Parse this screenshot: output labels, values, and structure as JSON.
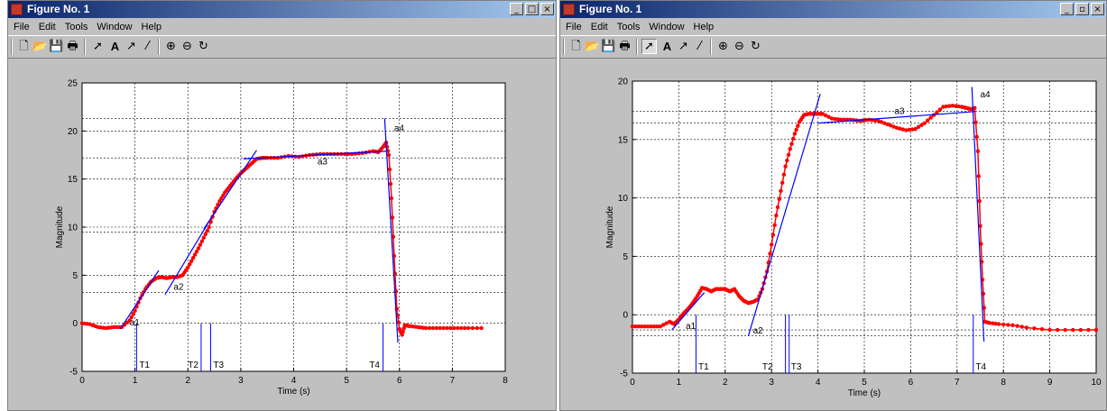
{
  "windows": [
    {
      "title": "Figure No. 1",
      "buttons": [
        "_",
        "□",
        "×"
      ],
      "menu": [
        "File",
        "Edit",
        "Tools",
        "Window",
        "Help"
      ]
    },
    {
      "title": "Figure No. 1",
      "buttons": [
        "_",
        "▫",
        "×"
      ],
      "menu": [
        "File",
        "Edit",
        "Tools",
        "Window",
        "Help"
      ]
    }
  ],
  "toolbar_icons": [
    "new-figure-icon",
    "open-icon",
    "save-icon",
    "print-icon",
    "select-arrow-icon",
    "text-icon",
    "arrow-icon",
    "line-icon",
    "zoom-in-icon",
    "zoom-out-icon",
    "rotate-icon"
  ],
  "chart_data": [
    {
      "type": "line",
      "xlabel": "Time (s)",
      "ylabel": "Magnitude",
      "xlim": [
        0,
        8
      ],
      "ylim": [
        -5,
        25
      ],
      "xticks": [
        0,
        1,
        2,
        3,
        4,
        5,
        6,
        7,
        8
      ],
      "yticks": [
        -5,
        0,
        5,
        10,
        15,
        20,
        25
      ],
      "grid": true,
      "extra_hlines": [
        3.2,
        9.5,
        17.2,
        21.3
      ],
      "series": [
        {
          "style": "red-dots",
          "x": [
            0,
            0.15,
            0.3,
            0.45,
            0.6,
            0.75,
            0.9,
            1.0,
            1.1,
            1.2,
            1.3,
            1.4,
            1.5,
            1.6,
            1.7,
            1.8,
            1.9,
            2.0,
            2.1,
            2.2,
            2.3,
            2.4,
            2.5,
            2.6,
            2.7,
            2.8,
            2.9,
            3.0,
            3.1,
            3.2,
            3.3,
            3.4,
            3.5,
            3.7,
            3.9,
            4.1,
            4.3,
            4.5,
            4.7,
            4.9,
            5.1,
            5.3,
            5.5,
            5.6,
            5.7,
            5.75,
            5.8,
            5.85,
            5.9,
            5.95,
            6.0,
            6.05,
            6.1,
            6.2,
            6.35,
            6.5,
            6.7,
            6.9,
            7.1,
            7.3,
            7.55
          ],
          "y": [
            0.0,
            -0.1,
            -0.4,
            -0.5,
            -0.4,
            -0.4,
            0.3,
            1.3,
            2.6,
            3.6,
            4.3,
            4.7,
            4.8,
            4.7,
            4.8,
            4.8,
            5.0,
            5.8,
            6.8,
            7.8,
            8.9,
            10.0,
            11.6,
            12.7,
            13.6,
            14.3,
            15.0,
            15.6,
            16.1,
            16.6,
            17.1,
            17.2,
            17.2,
            17.2,
            17.4,
            17.3,
            17.5,
            17.6,
            17.6,
            17.6,
            17.6,
            17.7,
            17.9,
            17.8,
            18.4,
            18.8,
            17.5,
            13.0,
            7.0,
            1.5,
            -0.6,
            -1.2,
            -0.2,
            -0.3,
            -0.4,
            -0.5,
            -0.5,
            -0.5,
            -0.5,
            -0.5,
            -0.5
          ]
        }
      ],
      "fit_lines": [
        {
          "x": [
            0.72,
            1.45
          ],
          "y": [
            -0.6,
            5.5
          ]
        },
        {
          "x": [
            1.57,
            2.5
          ],
          "y": [
            3.0,
            11.5
          ]
        },
        {
          "x": [
            2.3,
            3.3
          ],
          "y": [
            9.8,
            18.0
          ]
        },
        {
          "x": [
            3.05,
            5.75
          ],
          "y": [
            17.1,
            17.9
          ]
        },
        {
          "x": [
            5.72,
            5.97
          ],
          "y": [
            21.3,
            -2.0
          ]
        }
      ],
      "vlines": [
        1.03,
        2.25,
        2.43,
        5.69
      ],
      "point_labels": [
        {
          "text": "a1",
          "x": 0.9,
          "y": -0.2
        },
        {
          "text": "a2",
          "x": 1.73,
          "y": 3.5
        },
        {
          "text": "a3",
          "x": 4.45,
          "y": 16.5
        },
        {
          "text": "a4",
          "x": 5.9,
          "y": 20.0
        }
      ],
      "time_labels": [
        {
          "text": "T1",
          "x": 1.08
        },
        {
          "text": "T2",
          "x": 2.0
        },
        {
          "text": "T3",
          "x": 2.48
        },
        {
          "text": "T4",
          "x": 5.43
        }
      ]
    },
    {
      "type": "line",
      "xlabel": "Time (s)",
      "ylabel": "Magnitude",
      "xlim": [
        0,
        10
      ],
      "ylim": [
        -5,
        20
      ],
      "xticks": [
        0,
        1,
        2,
        3,
        4,
        5,
        6,
        7,
        8,
        9,
        10
      ],
      "yticks": [
        -5,
        0,
        5,
        10,
        15,
        20
      ],
      "grid": true,
      "extra_hlines": [
        -1.3,
        -1.8,
        16.4,
        17.4
      ],
      "series": [
        {
          "style": "red-dots",
          "x": [
            0,
            0.2,
            0.4,
            0.6,
            0.8,
            0.9,
            1.0,
            1.1,
            1.2,
            1.3,
            1.4,
            1.5,
            1.6,
            1.7,
            1.8,
            1.9,
            2.0,
            2.1,
            2.2,
            2.3,
            2.4,
            2.5,
            2.6,
            2.7,
            2.8,
            2.9,
            3.0,
            3.1,
            3.2,
            3.3,
            3.4,
            3.5,
            3.6,
            3.7,
            3.8,
            3.9,
            4.0,
            4.1,
            4.3,
            4.5,
            4.7,
            4.9,
            5.1,
            5.3,
            5.5,
            5.7,
            5.9,
            6.1,
            6.3,
            6.5,
            6.7,
            6.9,
            7.1,
            7.2,
            7.3,
            7.38,
            7.45,
            7.5,
            7.55,
            7.6,
            7.7,
            7.9,
            8.2,
            8.5,
            9.0,
            9.5,
            10.0
          ],
          "y": [
            -1.0,
            -1.0,
            -1.0,
            -1.0,
            -0.6,
            -0.8,
            -0.4,
            0.1,
            0.5,
            1.0,
            1.6,
            2.3,
            2.2,
            2.0,
            2.2,
            2.2,
            2.2,
            2.0,
            2.2,
            1.6,
            1.2,
            1.0,
            1.1,
            1.3,
            2.2,
            3.7,
            6.0,
            8.5,
            10.6,
            12.7,
            14.2,
            15.5,
            16.5,
            17.1,
            17.2,
            17.2,
            17.2,
            17.2,
            16.8,
            16.7,
            16.7,
            16.6,
            16.7,
            16.6,
            16.3,
            16.0,
            15.8,
            15.9,
            16.4,
            17.1,
            17.8,
            17.9,
            17.8,
            17.7,
            17.6,
            17.7,
            14.0,
            7.6,
            3.0,
            -0.6,
            -0.7,
            -0.8,
            -0.9,
            -1.1,
            -1.3,
            -1.3,
            -1.3
          ]
        }
      ],
      "fit_lines": [
        {
          "x": [
            0.85,
            1.55
          ],
          "y": [
            -1.3,
            1.9
          ]
        },
        {
          "x": [
            2.5,
            4.05
          ],
          "y": [
            -1.8,
            18.9
          ]
        },
        {
          "x": [
            4.0,
            7.4
          ],
          "y": [
            16.4,
            17.4
          ]
        },
        {
          "x": [
            7.32,
            7.58
          ],
          "y": [
            19.5,
            -2.3
          ]
        }
      ],
      "vlines": [
        1.37,
        3.3,
        3.38,
        7.35
      ],
      "point_labels": [
        {
          "text": "a1",
          "x": 1.15,
          "y": -1.2
        },
        {
          "text": "a2",
          "x": 2.6,
          "y": -1.6
        },
        {
          "text": "a3",
          "x": 5.65,
          "y": 17.2
        },
        {
          "text": "a4",
          "x": 7.5,
          "y": 18.6
        }
      ],
      "time_labels": [
        {
          "text": "T1",
          "x": 1.42
        },
        {
          "text": "T2",
          "x": 2.8
        },
        {
          "text": "T3",
          "x": 3.42
        },
        {
          "text": "T4",
          "x": 7.4
        }
      ]
    }
  ]
}
